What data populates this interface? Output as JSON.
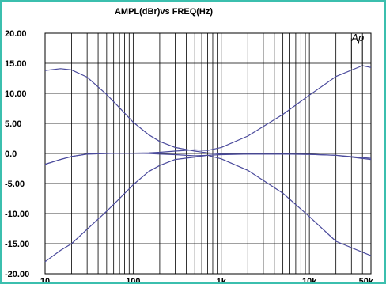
{
  "chart_data": {
    "type": "line",
    "title": "AMPL(dBr)vs FREQ(Hz)",
    "annotation": "Ap",
    "x_scale": "log",
    "xlim": [
      10,
      50000
    ],
    "ylim": [
      -20,
      20
    ],
    "grid": true,
    "legend": "none",
    "line_color": "#4a4a9c",
    "x_ticks": [
      {
        "value": 10,
        "label": "10"
      },
      {
        "value": 100,
        "label": "100"
      },
      {
        "value": 1000,
        "label": "1k"
      },
      {
        "value": 10000,
        "label": "10k"
      },
      {
        "value": 50000,
        "label": "50k"
      }
    ],
    "y_ticks": [
      {
        "value": 20,
        "label": "20.00"
      },
      {
        "value": 15,
        "label": "15.00"
      },
      {
        "value": 10,
        "label": "10.00"
      },
      {
        "value": 5,
        "label": "5.00"
      },
      {
        "value": 0,
        "label": "0.0"
      },
      {
        "value": -5,
        "label": "-5.00"
      },
      {
        "value": -10,
        "label": "-10.00"
      },
      {
        "value": -15,
        "label": "-15.00"
      },
      {
        "value": -20,
        "label": "-20.00"
      }
    ],
    "series": [
      {
        "x": [
          10,
          15,
          20,
          30,
          50,
          70,
          100,
          150,
          200,
          300,
          500,
          700,
          1000,
          2000,
          5000,
          10000,
          20000,
          50000
        ],
        "values": [
          13.8,
          14.1,
          13.9,
          12.7,
          9.8,
          7.6,
          5.2,
          3.1,
          2.0,
          1.0,
          0.4,
          0.1,
          -0.1,
          -0.1,
          -0.1,
          -0.15,
          -0.3,
          -0.8
        ]
      },
      {
        "x": [
          10,
          15,
          20,
          30,
          50,
          70,
          100,
          150,
          200,
          300,
          500,
          700,
          1000,
          2000,
          5000,
          10000,
          20000,
          40000,
          50000
        ],
        "values": [
          -1.8,
          -1.0,
          -0.5,
          -0.1,
          0.0,
          0.05,
          0.05,
          0.1,
          0.2,
          0.4,
          0.6,
          0.5,
          1.0,
          2.9,
          6.5,
          9.7,
          12.8,
          14.6,
          14.3
        ]
      },
      {
        "x": [
          10,
          15,
          20,
          30,
          50,
          70,
          100,
          150,
          200,
          300,
          500,
          700,
          1000,
          2000,
          5000,
          10000,
          20000,
          50000
        ],
        "values": [
          -18.0,
          -16.1,
          -15.0,
          -12.6,
          -9.6,
          -7.5,
          -5.2,
          -3.0,
          -2.0,
          -1.0,
          -0.6,
          -0.3,
          -0.2,
          -0.1,
          -0.1,
          -0.15,
          -0.3,
          -1.0
        ]
      },
      {
        "x": [
          10,
          15,
          20,
          30,
          50,
          70,
          100,
          150,
          200,
          300,
          500,
          700,
          1000,
          2000,
          5000,
          10000,
          20000,
          50000
        ],
        "values": [
          -1.8,
          -1.0,
          -0.5,
          -0.1,
          0.0,
          0.05,
          0.05,
          0.0,
          -0.1,
          -0.2,
          -0.4,
          -0.3,
          -0.9,
          -2.8,
          -6.6,
          -10.5,
          -14.6,
          -17.0
        ]
      }
    ]
  }
}
